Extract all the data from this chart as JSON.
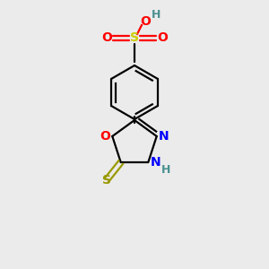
{
  "background_color": "#ebebeb",
  "colors": {
    "C": "#000000",
    "H": "#4a9090",
    "O": "#ff0000",
    "N": "#0000ff",
    "S_yellow": "#cccc00",
    "S_thio": "#999900"
  },
  "font_size": 10
}
